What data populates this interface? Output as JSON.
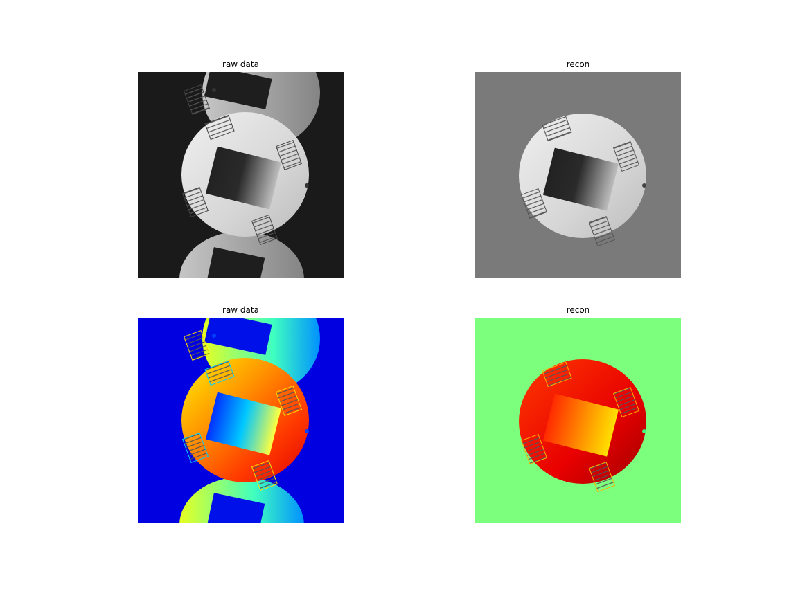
{
  "panels": [
    {
      "title": "raw data",
      "colormap": "gray"
    },
    {
      "title": "recon",
      "colormap": "gray"
    },
    {
      "title": "raw data",
      "colormap": "jet"
    },
    {
      "title": "recon",
      "colormap": "jet"
    }
  ],
  "colors": {
    "gray_background": "#1a1a1a",
    "gray_recon_background": "#7a7a7a",
    "jet_background": "#0000e0",
    "jet_recon_background": "#7cff7c"
  }
}
